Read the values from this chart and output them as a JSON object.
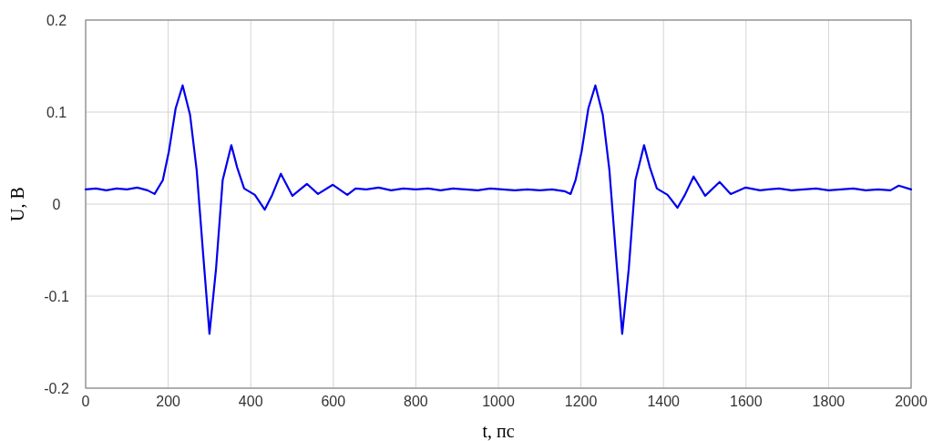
{
  "chart_data": {
    "type": "line",
    "xlabel": "t, пс",
    "ylabel": "U, В",
    "x": [
      0,
      25,
      50,
      75,
      100,
      125,
      150,
      167,
      187,
      202,
      218,
      235,
      253,
      269,
      285,
      300,
      316,
      332,
      353,
      367,
      384,
      410,
      434,
      452,
      473,
      501,
      536,
      563,
      599,
      634,
      654,
      680,
      710,
      740,
      770,
      800,
      830,
      860,
      890,
      920,
      950,
      980,
      1010,
      1040,
      1070,
      1100,
      1130,
      1160,
      1175,
      1187,
      1202,
      1218,
      1235,
      1253,
      1269,
      1285,
      1300,
      1316,
      1332,
      1353,
      1367,
      1384,
      1410,
      1434,
      1452,
      1473,
      1501,
      1536,
      1563,
      1599,
      1634,
      1654,
      1680,
      1710,
      1740,
      1770,
      1800,
      1830,
      1860,
      1890,
      1920,
      1950,
      1970,
      2000
    ],
    "series": [
      {
        "color": "#0000ee",
        "values": [
          0.016,
          0.017,
          0.015,
          0.017,
          0.016,
          0.018,
          0.015,
          0.011,
          0.026,
          0.058,
          0.104,
          0.129,
          0.097,
          0.037,
          -0.056,
          -0.141,
          -0.07,
          0.026,
          0.064,
          0.04,
          0.017,
          0.01,
          -0.006,
          0.01,
          0.033,
          0.009,
          0.022,
          0.011,
          0.021,
          0.01,
          0.017,
          0.016,
          0.018,
          0.015,
          0.017,
          0.016,
          0.017,
          0.015,
          0.017,
          0.016,
          0.015,
          0.017,
          0.016,
          0.015,
          0.016,
          0.015,
          0.016,
          0.014,
          0.011,
          0.026,
          0.058,
          0.104,
          0.129,
          0.097,
          0.037,
          -0.056,
          -0.141,
          -0.07,
          0.026,
          0.064,
          0.04,
          0.017,
          0.01,
          -0.004,
          0.01,
          0.03,
          0.009,
          0.024,
          0.011,
          0.018,
          0.015,
          0.016,
          0.017,
          0.015,
          0.016,
          0.017,
          0.015,
          0.016,
          0.017,
          0.015,
          0.016,
          0.015,
          0.02,
          0.016
        ]
      }
    ],
    "xlim": [
      0,
      2000
    ],
    "xticks": [
      0,
      200,
      400,
      600,
      800,
      1000,
      1200,
      1400,
      1600,
      1800,
      2000
    ],
    "ylim": [
      -0.2,
      0.2
    ],
    "yticks": [
      -0.2,
      -0.1,
      0,
      0.1,
      0.2
    ],
    "grid": true,
    "marker": "none",
    "line_style": "solid"
  }
}
